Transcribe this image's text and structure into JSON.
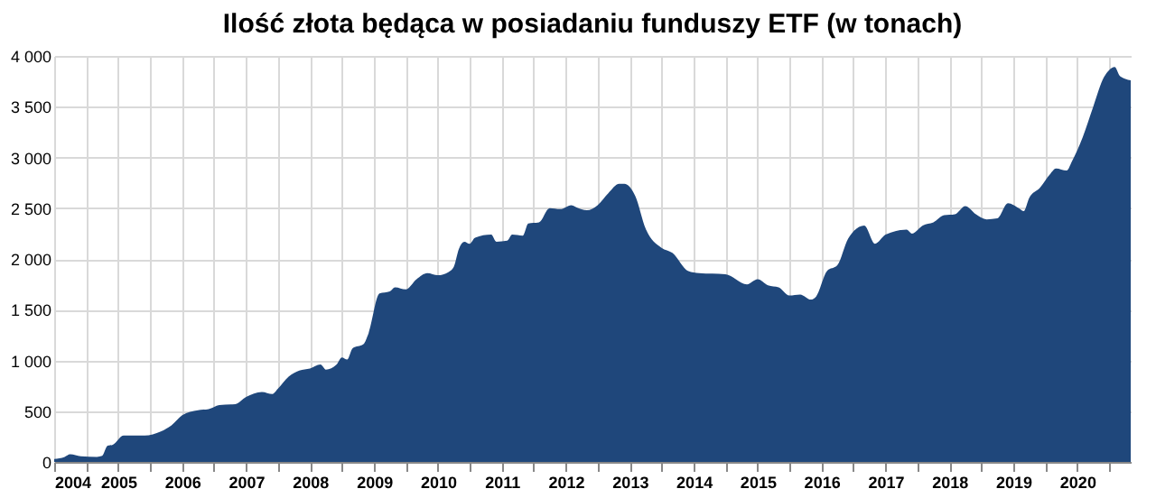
{
  "chart_data": {
    "type": "area",
    "title": "Ilość złota będąca w posiadaniu funduszy ETF (w tonach)",
    "x": [
      "2004-01",
      "2004-03",
      "2004-04",
      "2004-06",
      "2004-09",
      "2004-10",
      "2004-11",
      "2004-12",
      "2005-02",
      "2005-06",
      "2005-09",
      "2005-11",
      "2006-01",
      "2006-04",
      "2006-06",
      "2006-08",
      "2006-11",
      "2007-01",
      "2007-04",
      "2007-06",
      "2007-07",
      "2007-09",
      "2007-11",
      "2008-01",
      "2008-03",
      "2008-04",
      "2008-06",
      "2008-07",
      "2008-08",
      "2008-09",
      "2008-11",
      "2008-12",
      "2009-02",
      "2009-04",
      "2009-05",
      "2009-07",
      "2009-09",
      "2009-11",
      "2010-01",
      "2010-03",
      "2010-04",
      "2010-05",
      "2010-06",
      "2010-07",
      "2010-08",
      "2010-11",
      "2010-12",
      "2011-02",
      "2011-03",
      "2011-05",
      "2011-06",
      "2011-08",
      "2011-10",
      "2011-12",
      "2012-02",
      "2012-03",
      "2012-05",
      "2012-07",
      "2012-09",
      "2012-11",
      "2012-12",
      "2013-02",
      "2013-04",
      "2013-07",
      "2013-09",
      "2013-12",
      "2014-02",
      "2014-07",
      "2014-11",
      "2015-01",
      "2015-03",
      "2015-05",
      "2015-07",
      "2015-09",
      "2015-11",
      "2015-12",
      "2016-02",
      "2016-04",
      "2016-06",
      "2016-09",
      "2016-11",
      "2017-01",
      "2017-05",
      "2017-06",
      "2017-08",
      "2017-10",
      "2017-12",
      "2018-02",
      "2018-04",
      "2018-06",
      "2018-08",
      "2018-10",
      "2018-12",
      "2019-02",
      "2019-03",
      "2019-04",
      "2019-06",
      "2019-08",
      "2019-09",
      "2019-11",
      "2019-12",
      "2020-02",
      "2020-04",
      "2020-06",
      "2020-07",
      "2020-08",
      "2020-09",
      "2020-11"
    ],
    "series": [
      {
        "color": "#1f477b",
        "values": [
          30,
          50,
          75,
          55,
          50,
          60,
          160,
          170,
          260,
          260,
          300,
          360,
          460,
          510,
          520,
          560,
          570,
          640,
          690,
          670,
          720,
          840,
          900,
          920,
          960,
          910,
          960,
          1030,
          1010,
          1120,
          1160,
          1270,
          1660,
          1680,
          1720,
          1700,
          1800,
          1860,
          1840,
          1870,
          1920,
          2100,
          2170,
          2150,
          2210,
          2240,
          2170,
          2180,
          2240,
          2230,
          2350,
          2360,
          2500,
          2490,
          2530,
          2510,
          2480,
          2530,
          2650,
          2740,
          2740,
          2620,
          2300,
          2110,
          2060,
          1880,
          1860,
          1850,
          1750,
          1800,
          1740,
          1720,
          1640,
          1650,
          1600,
          1630,
          1880,
          1940,
          2200,
          2330,
          2150,
          2240,
          2290,
          2250,
          2330,
          2360,
          2430,
          2440,
          2520,
          2440,
          2390,
          2400,
          2550,
          2500,
          2470,
          2600,
          2700,
          2840,
          2890,
          2870,
          2960,
          3200,
          3500,
          3790,
          3860,
          3890,
          3800,
          3760
        ]
      }
    ],
    "xlim": [
      "2004-01",
      "2020-11"
    ],
    "xticks": [
      {
        "value": "2004-01",
        "label": "2004"
      },
      {
        "value": "2004-07",
        "label": null
      },
      {
        "value": "2005-01",
        "label": "2005"
      },
      {
        "value": "2005-07",
        "label": null
      },
      {
        "value": "2006-01",
        "label": "2006"
      },
      {
        "value": "2006-07",
        "label": null
      },
      {
        "value": "2007-01",
        "label": "2007"
      },
      {
        "value": "2007-07",
        "label": null
      },
      {
        "value": "2008-01",
        "label": "2008"
      },
      {
        "value": "2008-07",
        "label": null
      },
      {
        "value": "2009-01",
        "label": "2009"
      },
      {
        "value": "2009-07",
        "label": null
      },
      {
        "value": "2010-01",
        "label": "2010"
      },
      {
        "value": "2010-07",
        "label": null
      },
      {
        "value": "2011-01",
        "label": "2011"
      },
      {
        "value": "2011-07",
        "label": null
      },
      {
        "value": "2012-01",
        "label": "2012"
      },
      {
        "value": "2012-07",
        "label": null
      },
      {
        "value": "2013-01",
        "label": "2013"
      },
      {
        "value": "2013-07",
        "label": null
      },
      {
        "value": "2014-01",
        "label": "2014"
      },
      {
        "value": "2014-07",
        "label": null
      },
      {
        "value": "2015-01",
        "label": "2015"
      },
      {
        "value": "2015-07",
        "label": null
      },
      {
        "value": "2016-01",
        "label": "2016"
      },
      {
        "value": "2016-07",
        "label": null
      },
      {
        "value": "2017-01",
        "label": "2017"
      },
      {
        "value": "2017-07",
        "label": null
      },
      {
        "value": "2018-01",
        "label": "2018"
      },
      {
        "value": "2018-07",
        "label": null
      },
      {
        "value": "2019-01",
        "label": "2019"
      },
      {
        "value": "2019-07",
        "label": null
      },
      {
        "value": "2020-01",
        "label": "2020"
      },
      {
        "value": "2020-07",
        "label": null
      }
    ],
    "ylim": [
      0,
      4000
    ],
    "yticks": [
      {
        "value": 0,
        "label": "0"
      },
      {
        "value": 500,
        "label": "500"
      },
      {
        "value": 1000,
        "label": "1 000"
      },
      {
        "value": 1500,
        "label": "1 500"
      },
      {
        "value": 2000,
        "label": "2 000"
      },
      {
        "value": 2500,
        "label": "2 500"
      },
      {
        "value": 3000,
        "label": "3 000"
      },
      {
        "value": 3500,
        "label": "3 500"
      },
      {
        "value": 4000,
        "label": "4 000"
      }
    ],
    "grid": true
  }
}
